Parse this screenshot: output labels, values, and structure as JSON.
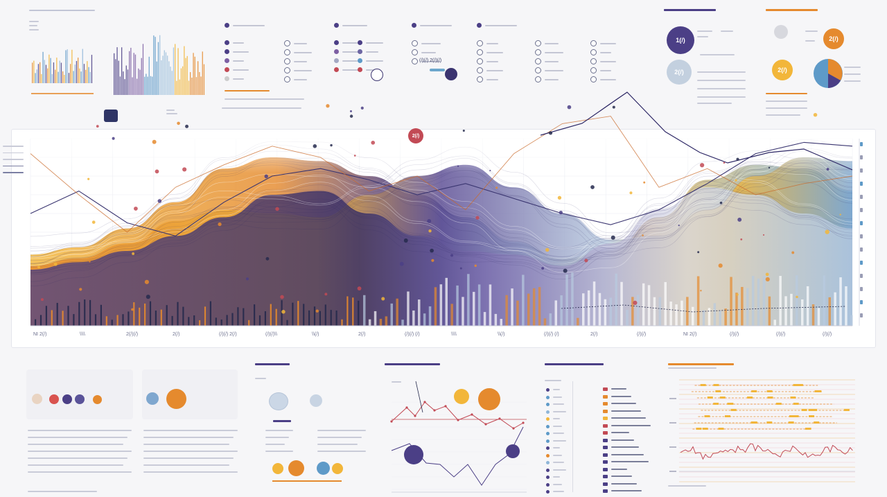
{
  "colors": {
    "purple": "#4b3f86",
    "orange": "#e58a2e",
    "gold": "#f2b63a",
    "blue": "#5e9ac8",
    "lightblue": "#b8cbe0",
    "red": "#d9534f",
    "grid": "#e3e4ea",
    "dark": "#262a4d"
  },
  "main_chart": {
    "x_ticks": [
      "NI 2(/)",
      "\\\\\\\\",
      "2(/)(/)",
      "2(/)",
      "(/)(/) 2(/)",
      "(/)(/)\\\\",
      "\\\\(/)",
      "2(/)",
      "(/)(/) (/)",
      "\\\\\\\\",
      "\\\\(/)",
      "(/)(/) (/)",
      "2(/)",
      "(/)(/)",
      "NI 2(/)",
      "(/)(/)",
      "(/)(/)",
      "(/)(/)"
    ],
    "badge_label": "2(/)",
    "badge2_label": "2(/)"
  },
  "top_right": {
    "c1": "1(/)",
    "c2": "2(/)",
    "c3": "2(/)",
    "c4": "2(/)"
  },
  "top_center": {
    "label_a": "(/)(/) 2(/)(/)"
  },
  "chart_data": {
    "type": "area",
    "x": [
      0,
      1,
      2,
      3,
      4,
      5,
      6,
      7,
      8,
      9,
      10,
      11,
      12,
      13,
      14,
      15,
      16,
      17
    ],
    "series": [
      {
        "values": [
          38,
          42,
          52,
          66,
          84,
          90,
          88,
          80,
          70,
          58,
          45,
          36,
          40,
          58,
          78,
          86,
          84,
          72
        ]
      },
      {
        "values": [
          32,
          36,
          44,
          56,
          62,
          60,
          58,
          70,
          80,
          86,
          74,
          60,
          46,
          48,
          62,
          80,
          90,
          88
        ]
      },
      {
        "values": [
          30,
          34,
          40,
          48,
          58,
          70,
          72,
          60,
          48,
          40,
          38,
          32,
          44,
          62,
          74,
          70,
          60,
          52
        ]
      }
    ],
    "ylim": [
      0,
      100
    ],
    "grid": true
  }
}
